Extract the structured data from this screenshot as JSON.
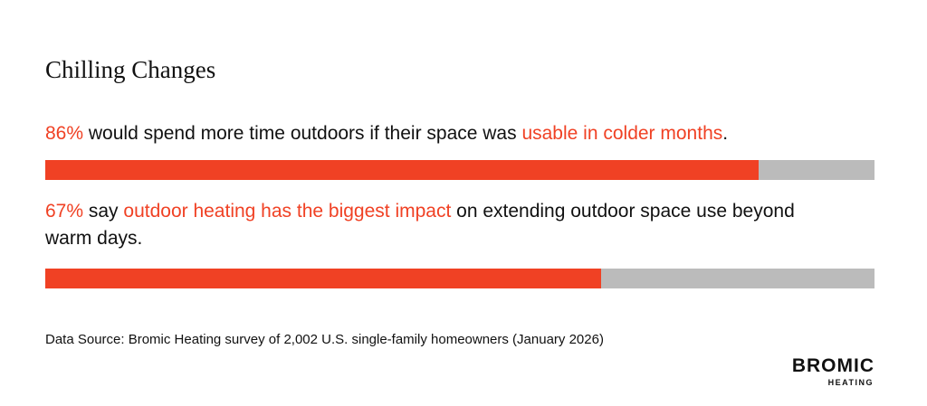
{
  "chart_data": {
    "type": "progress",
    "title": "Chilling Changes",
    "values": [
      86,
      67
    ],
    "value_labels": [
      "86%",
      "67%"
    ],
    "xlim": [
      0,
      100
    ],
    "color": "#f04124",
    "track_color": "#bbbbbb",
    "statements": [
      [
        {
          "text": "would spend more time outdoors if their space was "
        },
        {
          "text": "usable in colder months",
          "highlight": true
        },
        {
          "text": "."
        }
      ],
      [
        {
          "text": "say "
        },
        {
          "text": "outdoor heating has the biggest impact",
          "highlight": true
        },
        {
          "text": " on extending outdoor space use beyond warm days."
        }
      ]
    ],
    "source": "Data Source: Bromic Heating survey of 2,002 U.S. single-family homeowners (January 2026)"
  },
  "logo": {
    "name": "BROMIC",
    "tagline": "HEATING"
  }
}
